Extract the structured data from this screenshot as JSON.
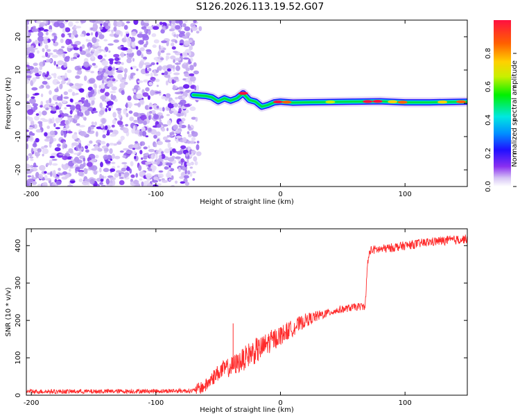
{
  "title": "S126.2026.113.19.52.G07",
  "chart_data": [
    {
      "type": "heatmap",
      "xlabel": "Height of straight line (km)",
      "ylabel": "Frequency (Hz)",
      "xlim": [
        -204,
        150
      ],
      "ylim": [
        -25,
        25
      ],
      "xticks": [
        -200,
        -100,
        0,
        100
      ],
      "yticks": [
        -20,
        -10,
        0,
        10,
        20
      ],
      "noise_region_x": [
        -204,
        -68
      ],
      "signal_line": {
        "x": [
          -70,
          -60,
          -55,
          -50,
          -45,
          -40,
          -35,
          -30,
          -25,
          -20,
          -15,
          -10,
          -5,
          0,
          10,
          20,
          40,
          60,
          80,
          100,
          120,
          150
        ],
        "y": [
          2.5,
          2.2,
          1.8,
          0.6,
          1.5,
          0.8,
          1.5,
          3.0,
          1.0,
          0.5,
          -1.0,
          -0.5,
          0.3,
          0.5,
          0.2,
          0.3,
          0.4,
          0.5,
          0.6,
          0.3,
          0.3,
          0.5
        ]
      },
      "colorbar": {
        "label": "Normalized spectral amplitude",
        "range": [
          0,
          1
        ],
        "ticks": [
          0.0,
          0.2,
          0.4,
          0.6,
          0.8
        ]
      }
    },
    {
      "type": "line",
      "xlabel": "Height of straight line (km)",
      "ylabel": "SNR (10 * v/v)",
      "xlim": [
        -204,
        150
      ],
      "ylim": [
        0,
        445
      ],
      "xticks": [
        -200,
        -100,
        0,
        100
      ],
      "yticks": [
        0,
        100,
        200,
        300,
        400
      ],
      "series": [
        {
          "color": "#ff2a2a",
          "x": [
            -204,
            -150,
            -100,
            -70,
            -60,
            -55,
            -50,
            -45,
            -40,
            -35,
            -30,
            -25,
            -20,
            -15,
            -10,
            -5,
            0,
            5,
            10,
            20,
            30,
            40,
            50,
            60,
            68,
            70,
            72,
            80,
            100,
            120,
            150
          ],
          "y": [
            10,
            10,
            11,
            12,
            25,
            45,
            60,
            70,
            75,
            85,
            95,
            110,
            118,
            125,
            140,
            150,
            160,
            170,
            180,
            200,
            212,
            222,
            230,
            236,
            238,
            355,
            388,
            390,
            400,
            410,
            418
          ]
        }
      ]
    }
  ]
}
